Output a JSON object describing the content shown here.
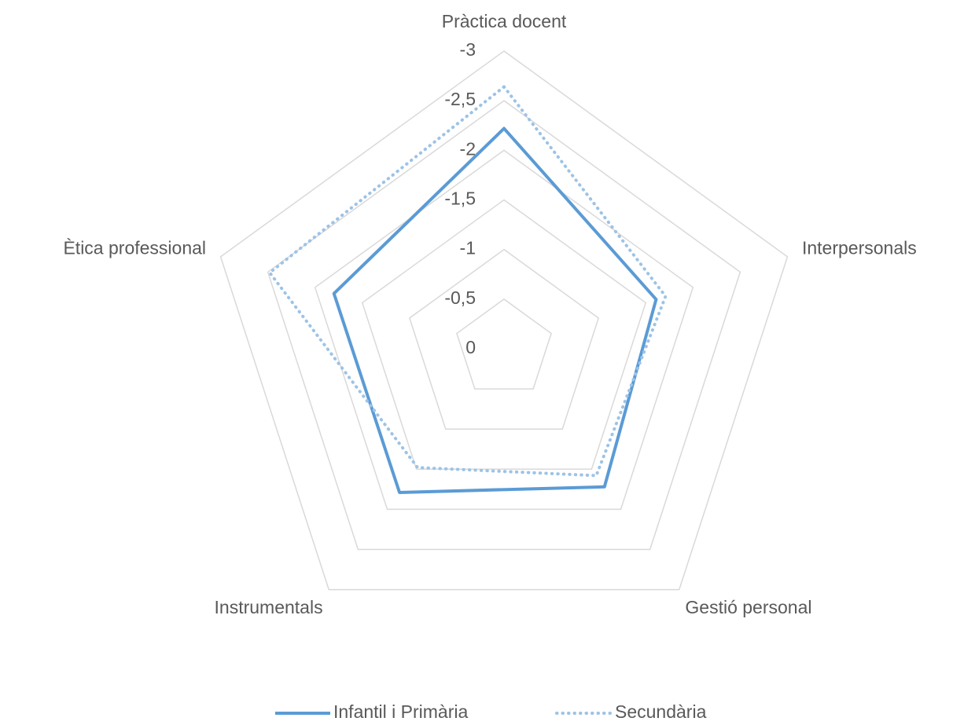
{
  "chart_data": {
    "type": "radar",
    "categories": [
      "Pràctica docent",
      "Interpersonals",
      "Gestió personal",
      "Instrumentals",
      "Ètica professional"
    ],
    "series": [
      {
        "name": "Infantil i Primària",
        "color": "#5b9bd5",
        "line_style": "solid",
        "values": [
          -2.22,
          -1.61,
          -1.72,
          -1.79,
          -1.8
        ]
      },
      {
        "name": "Secundària",
        "color": "#9dc3e6",
        "line_style": "dotted",
        "values": [
          -2.64,
          -1.71,
          -1.58,
          -1.48,
          -2.48
        ]
      }
    ],
    "ylim": [
      0,
      -3
    ],
    "yticks": [
      -3,
      {
        "value": -2.5,
        "label": "-2,5"
      },
      -2,
      {
        "value": -1.5,
        "label": "-1,5"
      },
      -1,
      {
        "value": -0.5,
        "label": "-0,5"
      },
      0
    ],
    "grid": true,
    "legend": "bottom"
  }
}
